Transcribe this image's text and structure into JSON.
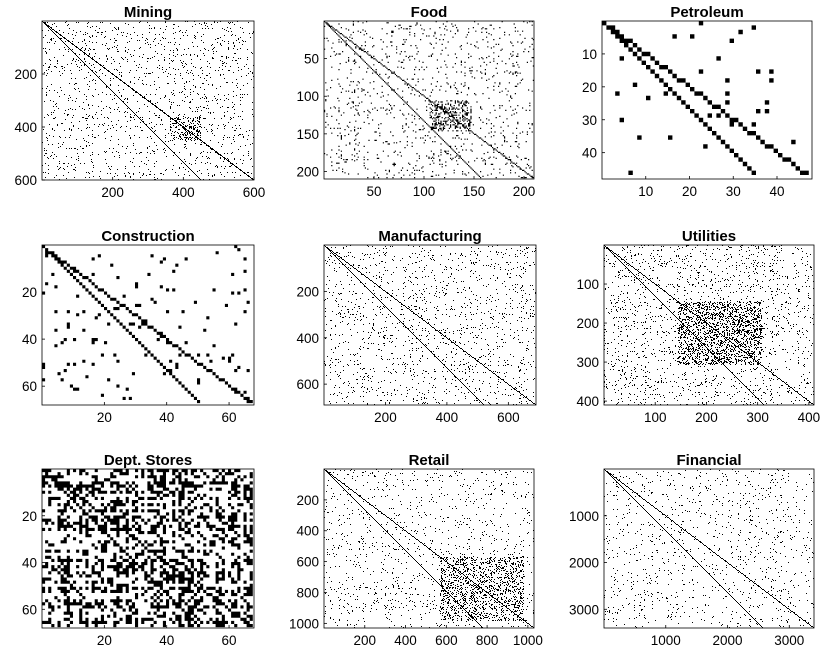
{
  "figure_kind": "sparsity pattern (spy plot) grid",
  "chart_data": [
    {
      "type": "heatmap",
      "title": "Mining",
      "n": 600,
      "xticks": [
        200,
        400,
        600
      ],
      "yticks": [
        200,
        400,
        600
      ],
      "density": 0.13,
      "grid": false
    },
    {
      "type": "heatmap",
      "title": "Food",
      "n": 210,
      "xticks": [
        50,
        100,
        150,
        200
      ],
      "yticks": [
        50,
        100,
        150,
        200
      ],
      "density": 0.14,
      "grid": false
    },
    {
      "type": "heatmap",
      "title": "Petroleum",
      "n": 48,
      "xticks": [
        10,
        20,
        30,
        40
      ],
      "yticks": [
        10,
        20,
        30,
        40
      ],
      "density": 0.09,
      "grid": false
    },
    {
      "type": "heatmap",
      "title": "Construction",
      "n": 68,
      "xticks": [
        20,
        40,
        60
      ],
      "yticks": [
        20,
        40,
        60
      ],
      "density": 0.12,
      "grid": false
    },
    {
      "type": "heatmap",
      "title": "Manufacturing",
      "n": 690,
      "xticks": [
        200,
        400,
        600
      ],
      "yticks": [
        200,
        400,
        600
      ],
      "density": 0.12,
      "grid": false
    },
    {
      "type": "heatmap",
      "title": "Utilities",
      "n": 410,
      "xticks": [
        100,
        200,
        300,
        400
      ],
      "yticks": [
        100,
        200,
        300,
        400
      ],
      "density": 0.16,
      "grid": false
    },
    {
      "type": "heatmap",
      "title": "Dept. Stores",
      "n": 68,
      "xticks": [
        20,
        40,
        60
      ],
      "yticks": [
        20,
        40,
        60
      ],
      "density": 0.62,
      "grid": false
    },
    {
      "type": "heatmap",
      "title": "Retail",
      "n": 1030,
      "xticks": [
        200,
        400,
        600,
        800,
        1000
      ],
      "yticks": [
        200,
        400,
        600,
        800,
        1000
      ],
      "density": 0.11,
      "grid": false
    },
    {
      "type": "heatmap",
      "title": "Financial",
      "n": 3400,
      "xticks": [
        1000,
        2000,
        3000
      ],
      "yticks": [
        1000,
        2000,
        3000
      ],
      "density": 0.1,
      "grid": false
    }
  ]
}
